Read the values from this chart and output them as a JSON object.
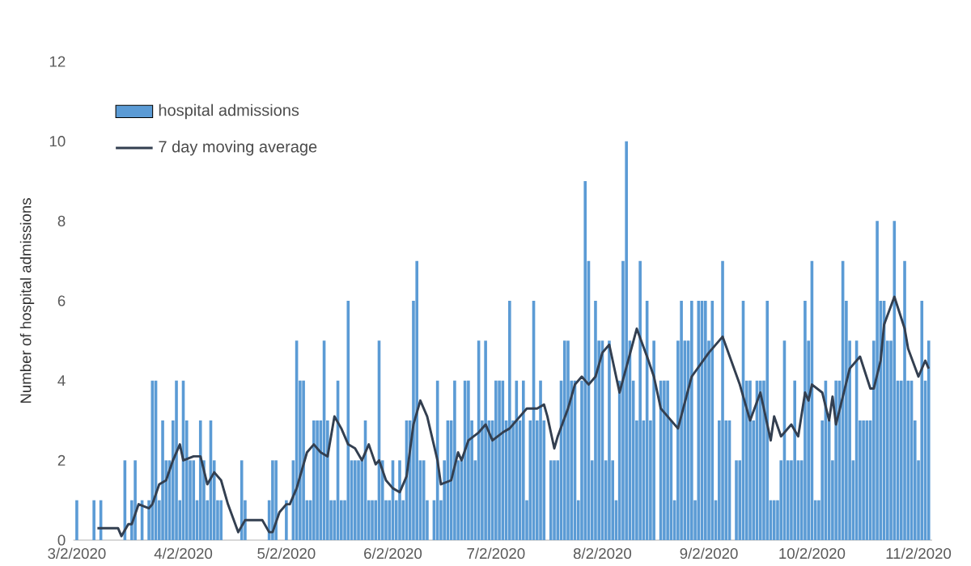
{
  "chart_data": {
    "type": "bar",
    "ylabel": "Number of hospital admissions",
    "xlim": [
      "2020-03-01",
      "2020-11-06"
    ],
    "xticks": [
      {
        "value": "2020-03-02",
        "label": "3/2/2020"
      },
      {
        "value": "2020-04-02",
        "label": "4/2/2020"
      },
      {
        "value": "2020-05-02",
        "label": "5/2/2020"
      },
      {
        "value": "2020-06-02",
        "label": "6/2/2020"
      },
      {
        "value": "2020-07-02",
        "label": "7/2/2020"
      },
      {
        "value": "2020-08-02",
        "label": "8/2/2020"
      },
      {
        "value": "2020-09-02",
        "label": "9/2/2020"
      },
      {
        "value": "2020-10-02",
        "label": "10/2/2020"
      },
      {
        "value": "2020-11-02",
        "label": "11/2/2020"
      }
    ],
    "ylim": [
      0,
      12
    ],
    "yticks": [
      0,
      2,
      4,
      6,
      8,
      10,
      12
    ],
    "legend": "top left",
    "grid": false,
    "series": [
      {
        "name": "hospital admissions",
        "color": "#5b9bd5",
        "x": [
          "2020-03-02",
          "2020-03-03",
          "2020-03-04",
          "2020-03-05",
          "2020-03-06",
          "2020-03-07",
          "2020-03-08",
          "2020-03-09",
          "2020-03-10",
          "2020-03-11",
          "2020-03-12",
          "2020-03-13",
          "2020-03-14",
          "2020-03-15",
          "2020-03-16",
          "2020-03-17",
          "2020-03-18",
          "2020-03-19",
          "2020-03-20",
          "2020-03-21",
          "2020-03-22",
          "2020-03-23",
          "2020-03-24",
          "2020-03-25",
          "2020-03-26",
          "2020-03-27",
          "2020-03-28",
          "2020-03-29",
          "2020-03-30",
          "2020-03-31",
          "2020-04-01",
          "2020-04-02",
          "2020-04-03",
          "2020-04-04",
          "2020-04-05",
          "2020-04-06",
          "2020-04-07",
          "2020-04-08",
          "2020-04-09",
          "2020-04-10",
          "2020-04-11",
          "2020-04-12",
          "2020-04-13",
          "2020-04-14",
          "2020-04-15",
          "2020-04-16",
          "2020-04-17",
          "2020-04-18",
          "2020-04-19",
          "2020-04-20",
          "2020-04-21",
          "2020-04-22",
          "2020-04-23",
          "2020-04-24",
          "2020-04-25",
          "2020-04-26",
          "2020-04-27",
          "2020-04-28",
          "2020-04-29",
          "2020-04-30",
          "2020-05-01",
          "2020-05-02",
          "2020-05-03",
          "2020-05-04",
          "2020-05-05",
          "2020-05-06",
          "2020-05-07",
          "2020-05-08",
          "2020-05-09",
          "2020-05-10",
          "2020-05-11",
          "2020-05-12",
          "2020-05-13",
          "2020-05-14",
          "2020-05-15",
          "2020-05-16",
          "2020-05-17",
          "2020-05-18",
          "2020-05-19",
          "2020-05-20",
          "2020-05-21",
          "2020-05-22",
          "2020-05-23",
          "2020-05-24",
          "2020-05-25",
          "2020-05-26",
          "2020-05-27",
          "2020-05-28",
          "2020-05-29",
          "2020-05-30",
          "2020-05-31",
          "2020-06-01",
          "2020-06-02",
          "2020-06-03",
          "2020-06-04",
          "2020-06-05",
          "2020-06-06",
          "2020-06-07",
          "2020-06-08",
          "2020-06-09",
          "2020-06-10",
          "2020-06-11",
          "2020-06-12",
          "2020-06-13",
          "2020-06-14",
          "2020-06-15",
          "2020-06-16",
          "2020-06-17",
          "2020-06-18",
          "2020-06-19",
          "2020-06-20",
          "2020-06-21",
          "2020-06-22",
          "2020-06-23",
          "2020-06-24",
          "2020-06-25",
          "2020-06-26",
          "2020-06-27",
          "2020-06-28",
          "2020-06-29",
          "2020-06-30",
          "2020-07-01",
          "2020-07-02",
          "2020-07-03",
          "2020-07-04",
          "2020-07-05",
          "2020-07-06",
          "2020-07-07",
          "2020-07-08",
          "2020-07-09",
          "2020-07-10",
          "2020-07-11",
          "2020-07-12",
          "2020-07-13",
          "2020-07-14",
          "2020-07-15",
          "2020-07-16",
          "2020-07-17",
          "2020-07-18",
          "2020-07-19",
          "2020-07-20",
          "2020-07-21",
          "2020-07-22",
          "2020-07-23",
          "2020-07-24",
          "2020-07-25",
          "2020-07-26",
          "2020-07-27",
          "2020-07-28",
          "2020-07-29",
          "2020-07-30",
          "2020-07-31",
          "2020-08-01",
          "2020-08-02",
          "2020-08-03",
          "2020-08-04",
          "2020-08-05",
          "2020-08-06",
          "2020-08-07",
          "2020-08-08",
          "2020-08-09",
          "2020-08-10",
          "2020-08-11",
          "2020-08-12",
          "2020-08-13",
          "2020-08-14",
          "2020-08-15",
          "2020-08-16",
          "2020-08-17",
          "2020-08-18",
          "2020-08-19",
          "2020-08-20",
          "2020-08-21",
          "2020-08-22",
          "2020-08-23",
          "2020-08-24",
          "2020-08-25",
          "2020-08-26",
          "2020-08-27",
          "2020-08-28",
          "2020-08-29",
          "2020-08-30",
          "2020-08-31",
          "2020-09-01",
          "2020-09-02",
          "2020-09-03",
          "2020-09-04",
          "2020-09-05",
          "2020-09-06",
          "2020-09-07",
          "2020-09-08",
          "2020-09-09",
          "2020-09-10",
          "2020-09-11",
          "2020-09-12",
          "2020-09-13",
          "2020-09-14",
          "2020-09-15",
          "2020-09-16",
          "2020-09-17",
          "2020-09-18",
          "2020-09-19",
          "2020-09-20",
          "2020-09-21",
          "2020-09-22",
          "2020-09-23",
          "2020-09-24",
          "2020-09-25",
          "2020-09-26",
          "2020-09-27",
          "2020-09-28",
          "2020-09-29",
          "2020-09-30",
          "2020-10-01",
          "2020-10-02",
          "2020-10-03",
          "2020-10-04",
          "2020-10-05",
          "2020-10-06",
          "2020-10-07",
          "2020-10-08",
          "2020-10-09",
          "2020-10-10",
          "2020-10-11",
          "2020-10-12",
          "2020-10-13",
          "2020-10-14",
          "2020-10-15",
          "2020-10-16",
          "2020-10-17",
          "2020-10-18",
          "2020-10-19",
          "2020-10-20",
          "2020-10-21",
          "2020-10-22",
          "2020-10-23",
          "2020-10-24",
          "2020-10-25",
          "2020-10-26",
          "2020-10-27",
          "2020-10-28",
          "2020-10-29",
          "2020-10-30",
          "2020-10-31",
          "2020-11-01",
          "2020-11-02",
          "2020-11-03",
          "2020-11-04",
          "2020-11-05"
        ],
        "values": [
          1,
          0,
          0,
          0,
          0,
          1,
          0,
          1,
          0,
          0,
          0,
          0,
          0,
          0,
          2,
          0,
          1,
          2,
          0,
          1,
          0,
          1,
          4,
          4,
          1,
          3,
          2,
          2,
          3,
          4,
          1,
          4,
          3,
          2,
          2,
          1,
          3,
          2,
          1,
          3,
          2,
          1,
          1,
          0,
          0,
          0,
          0,
          0,
          2,
          1,
          0,
          0,
          0,
          0,
          0,
          0,
          1,
          2,
          2,
          0,
          0,
          1,
          0,
          2,
          5,
          4,
          4,
          1,
          1,
          3,
          3,
          3,
          5,
          3,
          1,
          1,
          4,
          1,
          1,
          6,
          2,
          2,
          2,
          2,
          3,
          1,
          1,
          1,
          5,
          2,
          1,
          1,
          2,
          1,
          2,
          1,
          3,
          3,
          6,
          7,
          2,
          2,
          1,
          0,
          1,
          4,
          1,
          2,
          3,
          3,
          4,
          2,
          2,
          4,
          4,
          3,
          2,
          5,
          3,
          5,
          3,
          3,
          4,
          4,
          4,
          3,
          6,
          3,
          4,
          3,
          4,
          1,
          3,
          6,
          3,
          4,
          3,
          0,
          2,
          2,
          2,
          4,
          5,
          5,
          4,
          4,
          1,
          4,
          9,
          7,
          2,
          6,
          5,
          5,
          2,
          5,
          2,
          1,
          4,
          7,
          10,
          5,
          4,
          3,
          7,
          3,
          6,
          3,
          5,
          0,
          4,
          4,
          4,
          3,
          1,
          5,
          6,
          5,
          5,
          6,
          1,
          6,
          6,
          6,
          5,
          6,
          1,
          3,
          7,
          3,
          3,
          0,
          2,
          2,
          6,
          4,
          4,
          3,
          4,
          4,
          4,
          6,
          1,
          1,
          1,
          2,
          5,
          2,
          2,
          4,
          2,
          2,
          6,
          5,
          7,
          1,
          1,
          3,
          4,
          3,
          2,
          4,
          4,
          7,
          6,
          5,
          2,
          5,
          3,
          3,
          3,
          3,
          5,
          8,
          6,
          6,
          5,
          5,
          8,
          4,
          4,
          7,
          4,
          4,
          3,
          2,
          6,
          4,
          5
        ]
      },
      {
        "name": "7 day moving average",
        "type": "line",
        "color": "#333f50",
        "x": [
          "2020-03-08",
          "2020-03-10",
          "2020-03-14",
          "2020-03-15",
          "2020-03-17",
          "2020-03-18",
          "2020-03-20",
          "2020-03-23",
          "2020-03-24",
          "2020-03-26",
          "2020-03-28",
          "2020-03-30",
          "2020-04-01",
          "2020-04-02",
          "2020-04-05",
          "2020-04-07",
          "2020-04-09",
          "2020-04-11",
          "2020-04-13",
          "2020-04-15",
          "2020-04-18",
          "2020-04-20",
          "2020-04-25",
          "2020-04-27",
          "2020-04-28",
          "2020-04-30",
          "2020-05-02",
          "2020-05-03",
          "2020-05-05",
          "2020-05-08",
          "2020-05-10",
          "2020-05-12",
          "2020-05-14",
          "2020-05-16",
          "2020-05-18",
          "2020-05-20",
          "2020-05-22",
          "2020-05-24",
          "2020-05-26",
          "2020-05-28",
          "2020-05-29",
          "2020-05-31",
          "2020-06-02",
          "2020-06-04",
          "2020-06-06",
          "2020-06-08",
          "2020-06-10",
          "2020-06-12",
          "2020-06-15",
          "2020-06-16",
          "2020-06-19",
          "2020-06-21",
          "2020-06-22",
          "2020-06-24",
          "2020-06-27",
          "2020-06-29",
          "2020-07-01",
          "2020-07-04",
          "2020-07-06",
          "2020-07-09",
          "2020-07-11",
          "2020-07-14",
          "2020-07-16",
          "2020-07-17",
          "2020-07-19",
          "2020-07-20",
          "2020-07-23",
          "2020-07-25",
          "2020-07-27",
          "2020-07-29",
          "2020-07-31",
          "2020-08-02",
          "2020-08-04",
          "2020-08-07",
          "2020-08-12",
          "2020-08-15",
          "2020-08-17",
          "2020-08-19",
          "2020-08-24",
          "2020-08-28",
          "2020-09-02",
          "2020-09-06",
          "2020-09-11",
          "2020-09-14",
          "2020-09-17",
          "2020-09-20",
          "2020-09-21",
          "2020-09-23",
          "2020-09-26",
          "2020-09-28",
          "2020-09-30",
          "2020-10-01",
          "2020-10-02",
          "2020-10-05",
          "2020-10-07",
          "2020-10-08",
          "2020-10-09",
          "2020-10-13",
          "2020-10-16",
          "2020-10-19",
          "2020-10-20",
          "2020-10-22",
          "2020-10-23",
          "2020-10-26",
          "2020-10-29",
          "2020-10-30",
          "2020-11-02",
          "2020-11-04",
          "2020-11-05"
        ],
        "values": [
          0.3,
          0.3,
          0.3,
          0.1,
          0.4,
          0.4,
          0.9,
          0.8,
          0.9,
          1.4,
          1.5,
          2.0,
          2.4,
          2.0,
          2.1,
          2.1,
          1.4,
          1.7,
          1.5,
          0.9,
          0.2,
          0.5,
          0.5,
          0.2,
          0.2,
          0.7,
          0.9,
          0.9,
          1.3,
          2.2,
          2.4,
          2.2,
          2.1,
          3.1,
          2.8,
          2.4,
          2.3,
          2.0,
          2.4,
          1.9,
          2.0,
          1.5,
          1.3,
          1.2,
          1.6,
          2.9,
          3.5,
          3.1,
          2.0,
          1.4,
          1.5,
          2.2,
          2.0,
          2.5,
          2.7,
          2.9,
          2.5,
          2.7,
          2.8,
          3.1,
          3.3,
          3.3,
          3.4,
          3.1,
          2.3,
          2.6,
          3.3,
          3.9,
          4.1,
          3.9,
          4.1,
          4.7,
          4.9,
          3.7,
          5.3,
          4.6,
          4.1,
          3.3,
          2.8,
          4.1,
          4.7,
          5.1,
          3.9,
          3.0,
          3.7,
          2.5,
          3.1,
          2.6,
          2.9,
          2.6,
          3.7,
          3.5,
          3.9,
          3.7,
          3.0,
          3.6,
          2.9,
          4.3,
          4.6,
          3.8,
          3.8,
          4.5,
          5.4,
          6.1,
          5.3,
          4.8,
          4.1,
          4.5,
          4.3
        ]
      }
    ]
  }
}
